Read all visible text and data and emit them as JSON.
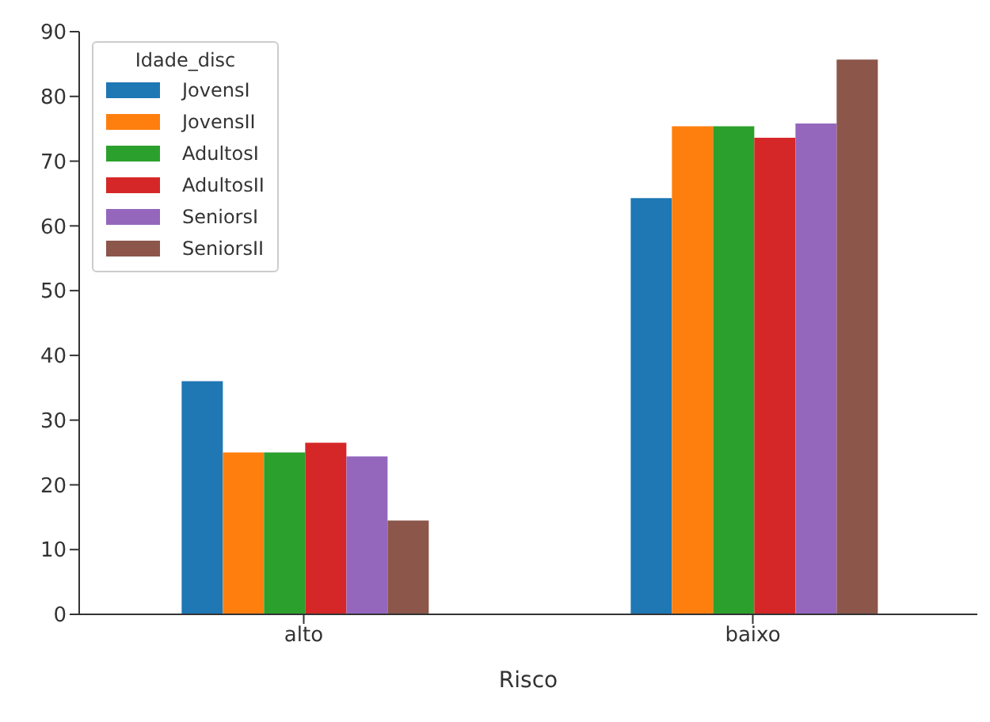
{
  "chart_data": {
    "type": "bar",
    "xlabel": "Risco",
    "legend_title": "Idade_disc",
    "categories": [
      "alto",
      "baixo"
    ],
    "series": [
      {
        "name": "JovensI",
        "color": "#1f77b4",
        "values": [
          36.0,
          64.3
        ]
      },
      {
        "name": "JovensII",
        "color": "#ff7f0e",
        "values": [
          25.0,
          75.4
        ]
      },
      {
        "name": "AdultosI",
        "color": "#2ca02c",
        "values": [
          25.0,
          75.4
        ]
      },
      {
        "name": "AdultosII",
        "color": "#d62728",
        "values": [
          26.5,
          73.6
        ]
      },
      {
        "name": "SeniorsI",
        "color": "#9467bd",
        "values": [
          24.4,
          75.8
        ]
      },
      {
        "name": "SeniorsII",
        "color": "#8c564b",
        "values": [
          14.5,
          85.7
        ]
      }
    ],
    "ylim": [
      0,
      90
    ],
    "yticks": [
      0,
      10,
      20,
      30,
      40,
      50,
      60,
      70,
      80,
      90
    ],
    "grid": false,
    "legend": "top left"
  }
}
